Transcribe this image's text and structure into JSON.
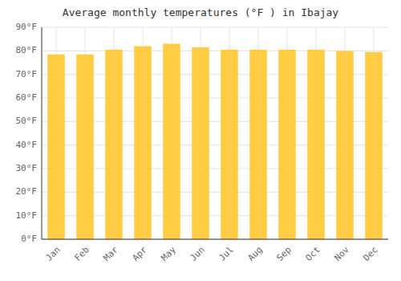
{
  "chart_data": {
    "type": "bar",
    "title": "Average monthly temperatures (°F ) in Ibajay",
    "categories": [
      "Jan",
      "Feb",
      "Mar",
      "Apr",
      "May",
      "Jun",
      "Jul",
      "Aug",
      "Sep",
      "Oct",
      "Nov",
      "Dec"
    ],
    "values": [
      78.5,
      78.5,
      80.5,
      82.0,
      83.0,
      81.5,
      80.5,
      80.5,
      80.5,
      80.5,
      80.0,
      79.5
    ],
    "color": "#FFCC44",
    "ylim": [
      0,
      90
    ],
    "yticks": [
      {
        "value": 0,
        "label": "0°F"
      },
      {
        "value": 10,
        "label": "10°F"
      },
      {
        "value": 20,
        "label": "20°F"
      },
      {
        "value": 30,
        "label": "30°F"
      },
      {
        "value": 40,
        "label": "40°F"
      },
      {
        "value": 50,
        "label": "50°F"
      },
      {
        "value": 60,
        "label": "60°F"
      },
      {
        "value": 70,
        "label": "70°F"
      },
      {
        "value": 80,
        "label": "80°F"
      },
      {
        "value": 90,
        "label": "90°F"
      }
    ],
    "grid": true
  }
}
